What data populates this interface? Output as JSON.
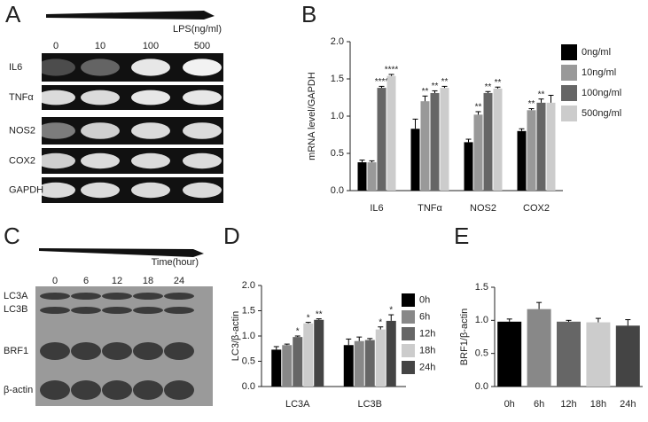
{
  "panels": [
    "A",
    "B",
    "C",
    "D",
    "E"
  ],
  "gels": [
    {
      "treatment": "LPS(ng/ml)",
      "lanes": [
        "0",
        "10",
        "100",
        "500"
      ],
      "rows": [
        "IL6",
        "TNFα",
        "NOS2",
        "COX2",
        "GAPDH"
      ]
    },
    {
      "treatment": "Time(hour)",
      "lanes": [
        "0",
        "6",
        "12",
        "18",
        "24"
      ],
      "rows": [
        "LC3A",
        "LC3B",
        "BRF1",
        "β-actin"
      ]
    }
  ],
  "chart_data": [
    {
      "type": "grouped_bar",
      "ylabel": "mRNA level/GAPDH",
      "categories": [
        "IL6",
        "TNFα",
        "NOS2",
        "COX2"
      ],
      "series": [
        {
          "name": "0ng/ml",
          "color": "#000000",
          "values": [
            0.38,
            0.83,
            0.65,
            0.8
          ],
          "errors": [
            0.03,
            0.13,
            0.04,
            0.03
          ],
          "sig": [
            null,
            null,
            null,
            null
          ]
        },
        {
          "name": "10ng/ml",
          "color": "#999999",
          "values": [
            0.38,
            1.2,
            1.02,
            1.08
          ],
          "errors": [
            0.02,
            0.07,
            0.04,
            0.02
          ],
          "sig": [
            null,
            "**",
            "**",
            "**"
          ]
        },
        {
          "name": "100ng/ml",
          "color": "#666666",
          "values": [
            1.38,
            1.31,
            1.31,
            1.18
          ],
          "errors": [
            0.02,
            0.03,
            0.02,
            0.05
          ],
          "sig": [
            "****",
            "**",
            "**",
            "**"
          ]
        },
        {
          "name": "500ng/ml",
          "color": "#cccccc",
          "values": [
            1.54,
            1.38,
            1.37,
            1.18
          ],
          "errors": [
            0.02,
            0.02,
            0.02,
            0.1
          ],
          "sig": [
            "****",
            "**",
            "**",
            null
          ]
        }
      ],
      "ylim": [
        0,
        2
      ],
      "yticks": [
        {
          "value": 0,
          "label": "0.0"
        },
        0.5,
        {
          "value": 1,
          "label": "1.0"
        },
        1.5,
        {
          "value": 2,
          "label": "2.0"
        }
      ],
      "legend": "right"
    },
    {
      "type": "grouped_bar",
      "ylabel": "LC3/β-actin",
      "categories": [
        "LC3A",
        "LC3B"
      ],
      "series": [
        {
          "name": "0h",
          "color": "#000000",
          "values": [
            0.73,
            0.82
          ],
          "errors": [
            0.06,
            0.12
          ],
          "sig": [
            null,
            null
          ]
        },
        {
          "name": "6h",
          "color": "#888888",
          "values": [
            0.82,
            0.9
          ],
          "errors": [
            0.02,
            0.08
          ],
          "sig": [
            null,
            null
          ]
        },
        {
          "name": "12h",
          "color": "#666666",
          "values": [
            0.98,
            0.92
          ],
          "errors": [
            0.02,
            0.03
          ],
          "sig": [
            "*",
            null
          ]
        },
        {
          "name": "18h",
          "color": "#cccccc",
          "values": [
            1.25,
            1.13
          ],
          "errors": [
            0.02,
            0.05
          ],
          "sig": [
            "*",
            "*"
          ]
        },
        {
          "name": "24h",
          "color": "#444444",
          "values": [
            1.32,
            1.3
          ],
          "errors": [
            0.02,
            0.12
          ],
          "sig": [
            "**",
            "*"
          ]
        }
      ],
      "ylim": [
        0,
        2
      ],
      "yticks": [
        {
          "value": 0,
          "label": "0.0"
        },
        0.5,
        {
          "value": 1,
          "label": "1.0"
        },
        1.5,
        {
          "value": 2,
          "label": "2.0"
        }
      ],
      "legend": "right"
    },
    {
      "type": "bar",
      "ylabel": "BRF1/β-actin",
      "categories": [
        "0h",
        "6h",
        "12h",
        "18h",
        "24h"
      ],
      "values": [
        0.98,
        1.17,
        0.98,
        0.97,
        0.92
      ],
      "errors": [
        0.04,
        0.1,
        0.02,
        0.06,
        0.09
      ],
      "colors": [
        "#000000",
        "#888888",
        "#666666",
        "#cccccc",
        "#444444"
      ],
      "ylim": [
        0,
        1.5
      ],
      "yticks": [
        {
          "value": 0,
          "label": "0.0"
        },
        0.5,
        {
          "value": 1,
          "label": "1.0"
        },
        1.5
      ]
    }
  ]
}
